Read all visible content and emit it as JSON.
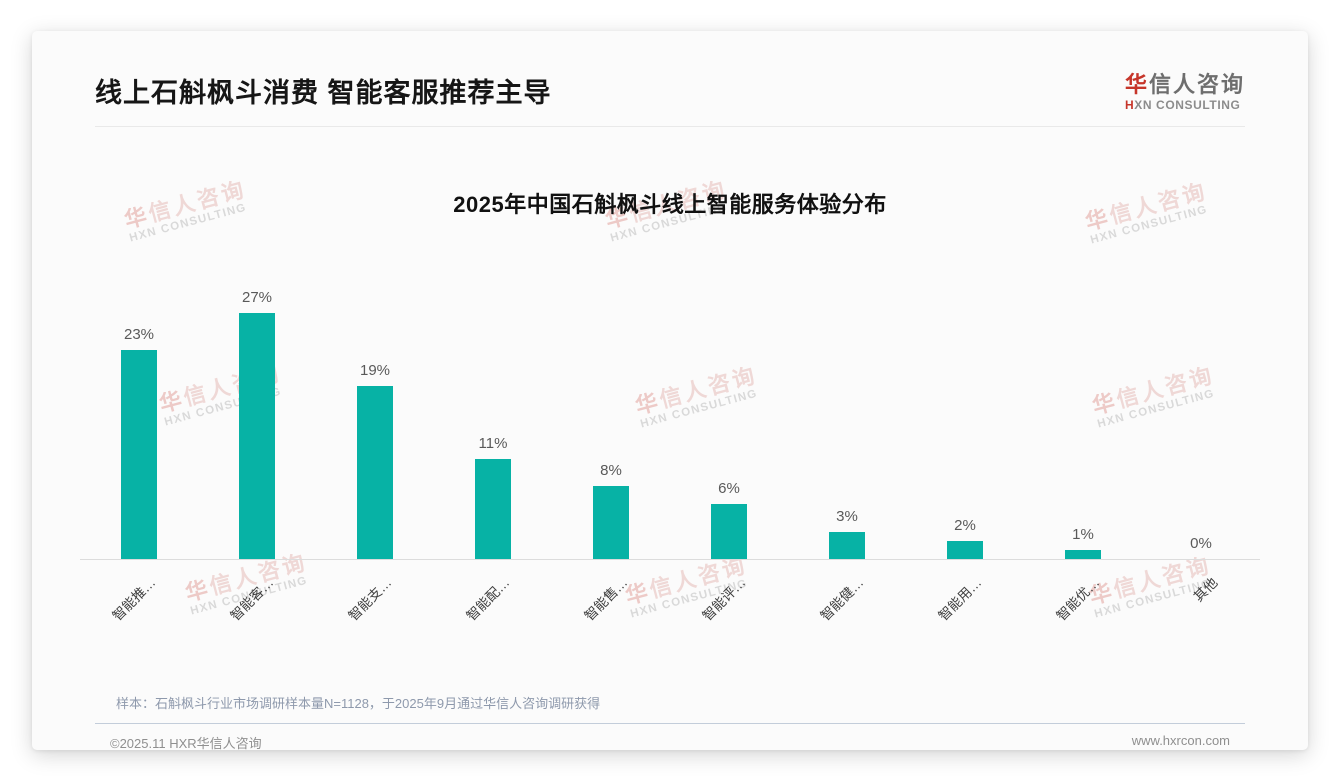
{
  "header": {
    "title": "线上石斛枫斗消费 智能客服推荐主导"
  },
  "logo": {
    "zh_accent": "华",
    "zh_rest": "信人咨询",
    "en_accent": "H",
    "en_rest": "XN CONSULTING"
  },
  "watermark": {
    "zh_first": "华",
    "zh_rest": "信人咨询",
    "en": "HXN CONSULTING"
  },
  "chart_data": {
    "type": "bar",
    "title": "2025年中国石斛枫斗线上智能服务体验分布",
    "categories": [
      "智能推…",
      "智能客…",
      "智能支…",
      "智能配…",
      "智能售…",
      "智能评…",
      "智能健…",
      "智能用…",
      "智能优…",
      "其他"
    ],
    "values": [
      23,
      27,
      19,
      11,
      8,
      6,
      3,
      2,
      1,
      0
    ],
    "value_labels": [
      "23%",
      "27%",
      "19%",
      "11%",
      "8%",
      "6%",
      "3%",
      "2%",
      "1%",
      "0%"
    ],
    "unit": "%",
    "bar_color": "#07b2a5",
    "ylim": [
      0,
      30
    ],
    "grid": false,
    "legend": false,
    "x_label_rotation": 45
  },
  "footer": {
    "note": "样本：石斛枫斗行业市场调研样本量N=1128，于2025年9月通过华信人咨询调研获得",
    "copyright": "©2025.11 HXR华信人咨询",
    "website": "www.hxrcon.com"
  }
}
